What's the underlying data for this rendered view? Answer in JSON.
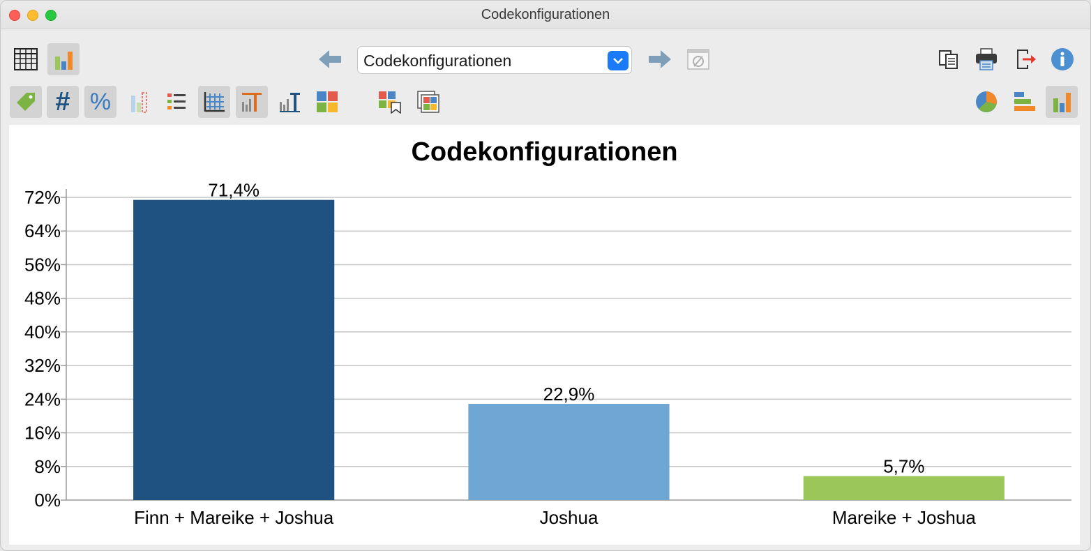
{
  "window": {
    "title": "Codekonfigurationen"
  },
  "toolbar": {
    "left_buttons": [
      {
        "icon": "table-icon",
        "active": false
      },
      {
        "icon": "bar-chart-icon",
        "active": true
      }
    ],
    "nav_back_icon": "arrow-left-icon",
    "nav_forward_icon": "arrow-right-icon",
    "dropdown": {
      "value": "Codekonfigurationen"
    },
    "reset_icon": "empty-set-icon",
    "right_buttons": [
      "copy-icon",
      "print-icon",
      "export-icon",
      "info-icon"
    ]
  },
  "toolbar2": {
    "buttons": [
      {
        "icon": "tag-icon",
        "active": true
      },
      {
        "icon": "hash-icon",
        "active": true
      },
      {
        "icon": "percent-icon",
        "active": true
      },
      {
        "icon": "dashed-bars-icon",
        "active": false
      },
      {
        "icon": "colored-list-icon",
        "active": false
      },
      {
        "icon": "grid-icon",
        "active": true
      },
      {
        "icon": "bar-text-orange-icon",
        "active": true
      },
      {
        "icon": "bar-text-blue-icon",
        "active": false
      },
      {
        "icon": "color-squares-icon",
        "active": false
      },
      {
        "icon": "color-bookmark-icon",
        "active": false
      },
      {
        "icon": "color-palette-icon",
        "active": false
      }
    ],
    "right_buttons": [
      {
        "icon": "pie-chart-icon",
        "active": false
      },
      {
        "icon": "horizontal-bar-icon",
        "active": false
      },
      {
        "icon": "vertical-bar-icon",
        "active": true
      }
    ],
    "hash_glyph": "#",
    "percent_glyph": "%"
  },
  "colors": {
    "bar1": "#1f5281",
    "bar2": "#6ea6d4",
    "bar3": "#9bc65a",
    "accent": "#1a7af8"
  },
  "chart_data": {
    "type": "bar",
    "title": "Codekonfigurationen",
    "categories": [
      "Finn + Mareike + Joshua",
      "Joshua",
      "Mareike + Joshua"
    ],
    "values": [
      71.4,
      22.9,
      5.7
    ],
    "value_labels": [
      "71,4%",
      "22,9%",
      "5,7%"
    ],
    "colors": [
      "#1f5281",
      "#6ea6d4",
      "#9bc65a"
    ],
    "yticks": [
      "0%",
      "8%",
      "16%",
      "24%",
      "32%",
      "40%",
      "48%",
      "56%",
      "64%",
      "72%"
    ],
    "ytick_values": [
      0,
      8,
      16,
      24,
      32,
      40,
      48,
      56,
      64,
      72
    ],
    "ylim": [
      0,
      72
    ],
    "grid": true,
    "xlabel": "",
    "ylabel": ""
  }
}
